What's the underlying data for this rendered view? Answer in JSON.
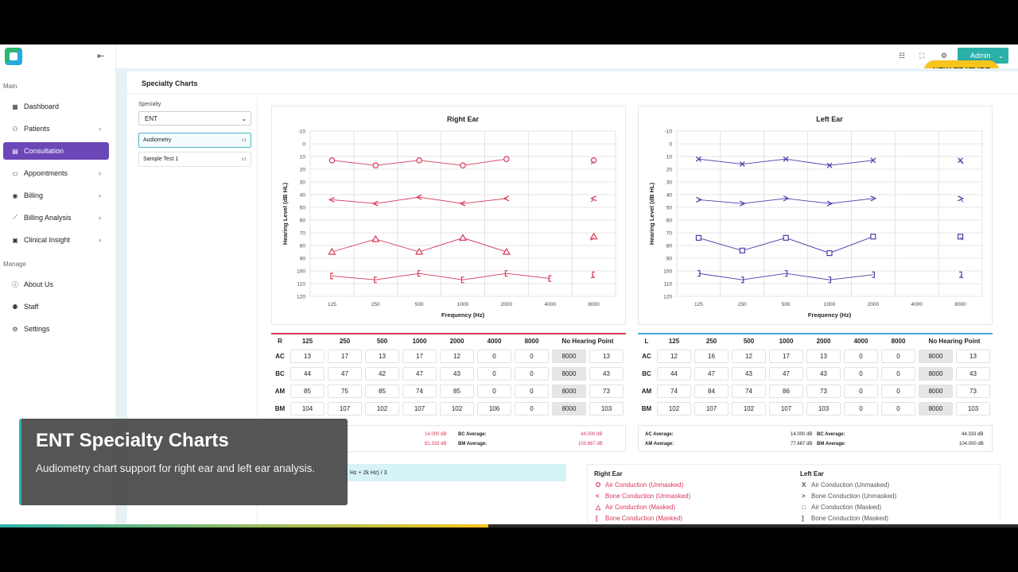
{
  "sidebar": {
    "sections": {
      "main": "Main",
      "manage": "Manage"
    },
    "items": [
      {
        "label": "Dashboard",
        "icon": "dashboard-icon",
        "chev": ""
      },
      {
        "label": "Patients",
        "icon": "patients-icon",
        "chev": "›"
      },
      {
        "label": "Consultation",
        "icon": "consultation-icon",
        "chev": ""
      },
      {
        "label": "Appointments",
        "icon": "calendar-icon",
        "chev": "›"
      },
      {
        "label": "Billing",
        "icon": "billing-icon",
        "chev": "›"
      },
      {
        "label": "Billing Analysis",
        "icon": "chart-icon",
        "chev": "›"
      },
      {
        "label": "Clinical Insight",
        "icon": "insight-icon",
        "chev": "›"
      }
    ],
    "manage_items": [
      {
        "label": "About Us",
        "icon": "info-icon"
      },
      {
        "label": "Staff",
        "icon": "staff-icon"
      },
      {
        "label": "Settings",
        "icon": "gear-icon"
      }
    ],
    "collapse_icon": "⇤"
  },
  "topbar": {
    "admin_label": "Admin",
    "admin_chev": "⌄",
    "new_feature": "NEW FEATURE"
  },
  "page": {
    "title": "Specialty Charts"
  },
  "specialty": {
    "label": "Specialty",
    "selected": "ENT",
    "select_chev": "⌄",
    "tests": [
      {
        "name": "Audiometry",
        "version": "v1"
      },
      {
        "name": "Sample Test 1",
        "version": "v1"
      }
    ]
  },
  "audiogram": {
    "x_labels": [
      "125",
      "250",
      "500",
      "1000",
      "2000",
      "4000",
      "8000"
    ],
    "y_ticks": [
      -10,
      0,
      10,
      20,
      30,
      40,
      50,
      60,
      70,
      80,
      90,
      100,
      110,
      120
    ],
    "ylabel": "Hearing Level (dB HL)",
    "xlabel": "Frequency (Hz)",
    "right": {
      "title": "Right Ear",
      "color": "#d6395a",
      "series": [
        {
          "name": "AC",
          "marker": "circle",
          "values": [
            13,
            17,
            13,
            17,
            12
          ],
          "nr": 13
        },
        {
          "name": "BC",
          "marker": "lt",
          "values": [
            44,
            47,
            42,
            47,
            43
          ],
          "nr": 43
        },
        {
          "name": "AM",
          "marker": "triangle",
          "values": [
            85,
            75,
            85,
            74,
            85
          ],
          "nr": 73
        },
        {
          "name": "BM",
          "marker": "bracket-left",
          "values": [
            104,
            107,
            102,
            107,
            102,
            106
          ],
          "nr": 103
        }
      ]
    },
    "left": {
      "title": "Left Ear",
      "color": "#4a3ea8",
      "series": [
        {
          "name": "AC",
          "marker": "x",
          "values": [
            12,
            16,
            12,
            17,
            13
          ],
          "nr": 13
        },
        {
          "name": "BC",
          "marker": "gt",
          "values": [
            44,
            47,
            43,
            47,
            43
          ],
          "nr": 43
        },
        {
          "name": "AM",
          "marker": "square",
          "values": [
            74,
            84,
            74,
            86,
            73
          ],
          "nr": 73
        },
        {
          "name": "BM",
          "marker": "bracket-right",
          "values": [
            102,
            107,
            102,
            107,
            103
          ],
          "nr": 103
        }
      ]
    }
  },
  "tables": {
    "right": {
      "headers": [
        "R",
        "125",
        "250",
        "500",
        "1000",
        "2000",
        "4000",
        "8000",
        "No Hearing Point"
      ],
      "rows": [
        {
          "label": "AC",
          "cells": [
            "13",
            "17",
            "13",
            "17",
            "12",
            "0",
            "0",
            "8000",
            "13"
          ]
        },
        {
          "label": "BC",
          "cells": [
            "44",
            "47",
            "42",
            "47",
            "43",
            "0",
            "0",
            "8000",
            "43"
          ]
        },
        {
          "label": "AM",
          "cells": [
            "85",
            "75",
            "85",
            "74",
            "85",
            "0",
            "0",
            "8000",
            "73"
          ]
        },
        {
          "label": "BM",
          "cells": [
            "104",
            "107",
            "102",
            "107",
            "102",
            "106",
            "0",
            "8000",
            "103"
          ]
        }
      ]
    },
    "left": {
      "headers": [
        "L",
        "125",
        "250",
        "500",
        "1000",
        "2000",
        "4000",
        "8000",
        "No Hearing Point"
      ],
      "rows": [
        {
          "label": "AC",
          "cells": [
            "12",
            "16",
            "12",
            "17",
            "13",
            "0",
            "0",
            "8000",
            "13"
          ]
        },
        {
          "label": "BC",
          "cells": [
            "44",
            "47",
            "43",
            "47",
            "43",
            "0",
            "0",
            "8000",
            "43"
          ]
        },
        {
          "label": "AM",
          "cells": [
            "74",
            "84",
            "74",
            "86",
            "73",
            "0",
            "0",
            "8000",
            "73"
          ]
        },
        {
          "label": "BM",
          "cells": [
            "102",
            "107",
            "102",
            "107",
            "103",
            "0",
            "0",
            "8000",
            "103"
          ]
        }
      ]
    }
  },
  "averages": {
    "right": {
      "ac_value": "14.000 dB",
      "bc_label": "BC Average:",
      "bc_value": "44.000 dB",
      "am_value": "81.333 dB",
      "bm_label": "BM Average:",
      "bm_value": "103.667 dB"
    },
    "left": {
      "ac_label": "AC Average:",
      "ac_value": "14.000 dB",
      "bc_label": "BC Average:",
      "bc_value": "44.333 dB",
      "am_label": "AM Average:",
      "am_value": "77.667 dB",
      "bm_label": "BM Average:",
      "bm_value": "104.000 dB"
    }
  },
  "formula": "Hz + 2k Hz) / 3",
  "legend": {
    "right": {
      "title": "Right Ear",
      "items": [
        {
          "sym": "O",
          "text": "Air Conduction (Unmasked)"
        },
        {
          "sym": "<",
          "text": "Bone Conduction (Unmasked)"
        },
        {
          "sym": "△",
          "text": "Air Conduction (Masked)"
        },
        {
          "sym": "[",
          "text": "Bone Conduction (Masked)"
        }
      ]
    },
    "left": {
      "title": "Left Ear",
      "items": [
        {
          "sym": "X",
          "text": "Air Conduction (Unmasked)"
        },
        {
          "sym": ">",
          "text": "Bone Conduction (Unmasked)"
        },
        {
          "sym": "□",
          "text": "Air Conduction (Masked)"
        },
        {
          "sym": "]",
          "text": "Bone Conduction (Masked)"
        }
      ]
    }
  },
  "caption": {
    "title": "ENT Specialty Charts",
    "subtitle": "Audiometry chart support for right ear and left ear analysis."
  },
  "video": {
    "progress_percent": 48
  }
}
